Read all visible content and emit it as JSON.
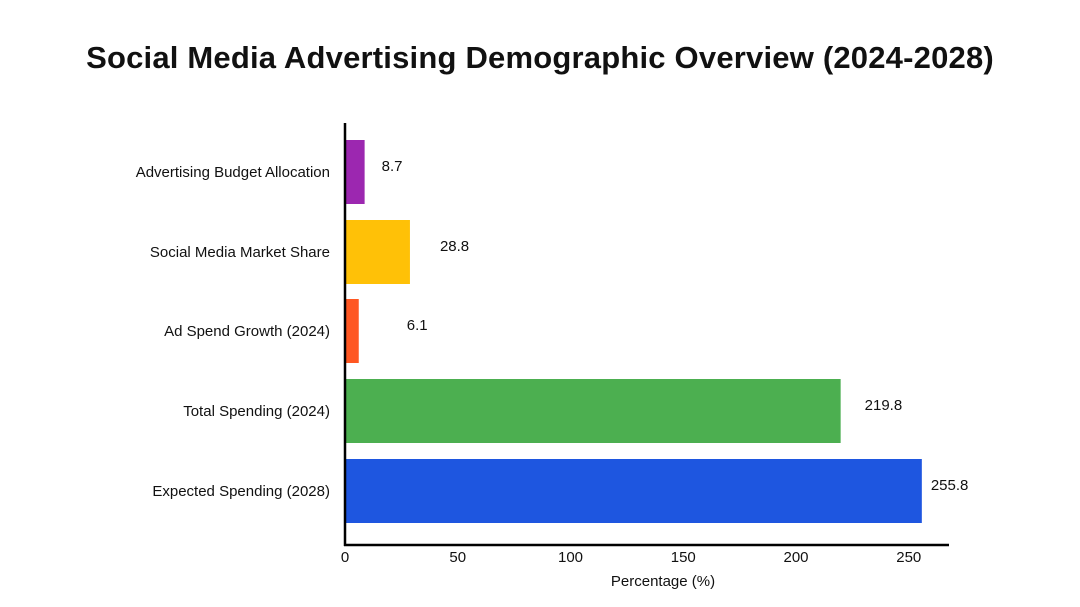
{
  "chart_data": {
    "type": "bar",
    "orientation": "horizontal",
    "title": "Social Media Advertising Demographic Overview (2024-2028)",
    "xlabel": "Percentage (%)",
    "ylabel": "",
    "xlim": [
      0,
      267
    ],
    "xticks": [
      0,
      50,
      100,
      150,
      200,
      250
    ],
    "grid": false,
    "categories": [
      "Advertising Budget Allocation",
      "Social Media Market Share",
      "Ad Spend Growth (2024)",
      "Total Spending (2024)",
      "Expected Spending (2028)"
    ],
    "values": [
      8.7,
      28.8,
      6.1,
      219.8,
      255.8
    ],
    "data_labels": [
      "8.7",
      "28.8",
      "6.1",
      "219.8",
      "255.8"
    ],
    "colors": [
      "#9C27B0",
      "#FFC107",
      "#FF5722",
      "#4CAF50",
      "#1E56E0"
    ]
  }
}
